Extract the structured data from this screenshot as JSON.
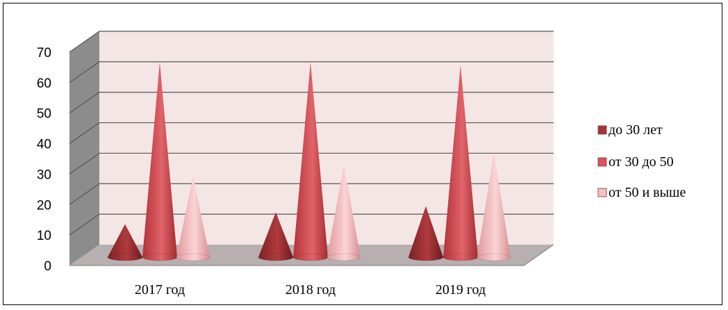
{
  "chart_data": {
    "type": "bar",
    "style": "3d-cone",
    "categories": [
      "2017 год",
      "2018 год",
      "2019 год"
    ],
    "series": [
      {
        "name": "до 30 лет",
        "values": [
          11,
          15,
          17
        ],
        "color": "#b03a3e"
      },
      {
        "name": "от 30 до 50",
        "values": [
          65,
          65,
          64
        ],
        "color": "#d9535a"
      },
      {
        "name": "от 50 и выше",
        "values": [
          27,
          31,
          35
        ],
        "color": "#f2b6b8"
      }
    ],
    "yticks": [
      "0",
      "10",
      "20",
      "30",
      "40",
      "50",
      "60",
      "70"
    ],
    "ylim": [
      0,
      70
    ],
    "grid": true,
    "legend_position": "right",
    "colors": {
      "back_wall": "#f5e6e6",
      "side_wall": "#8c8c8c",
      "floor": "#b8b0b0",
      "grid": "#555555"
    }
  }
}
